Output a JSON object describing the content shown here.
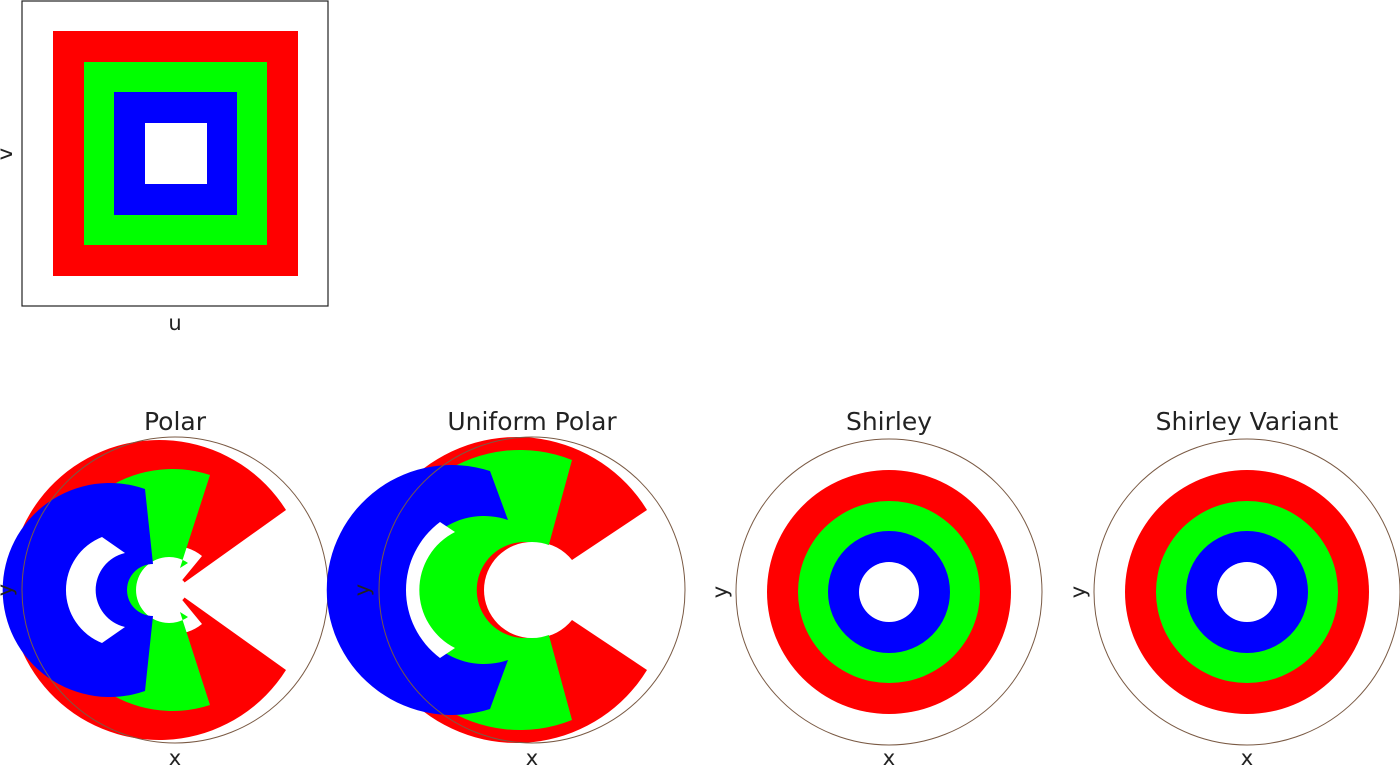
{
  "colors": {
    "ring_outer": "#ff0000",
    "ring_middle": "#00ff00",
    "ring_inner": "#0000ff",
    "center": "#ffffff",
    "unit_circle": "#7a5a44",
    "frame": "#222222"
  },
  "chart_data": [
    {
      "type": "image",
      "panel": "uv-square",
      "title": "",
      "xlabel": "u",
      "ylabel": "v",
      "xlim": [
        0,
        1
      ],
      "ylim": [
        0,
        1
      ],
      "bands": [
        {
          "color": "red",
          "from": 0.1,
          "to": 0.2
        },
        {
          "color": "green",
          "from": 0.2,
          "to": 0.3
        },
        {
          "color": "blue",
          "from": 0.3,
          "to": 0.4
        },
        {
          "color": "white",
          "from": 0.4,
          "to": 0.5
        }
      ]
    },
    {
      "type": "image",
      "panel": "polar",
      "title": "Polar",
      "xlabel": "x",
      "ylabel": "y",
      "xlim": [
        -1,
        1
      ],
      "ylim": [
        -1,
        1
      ]
    },
    {
      "type": "image",
      "panel": "uniform-polar",
      "title": "Uniform Polar",
      "xlabel": "x",
      "ylabel": "y",
      "xlim": [
        -1,
        1
      ],
      "ylim": [
        -1,
        1
      ]
    },
    {
      "type": "image",
      "panel": "shirley",
      "title": "Shirley",
      "xlabel": "x",
      "ylabel": "y",
      "xlim": [
        -1,
        1
      ],
      "ylim": [
        -1,
        1
      ],
      "ring_radii": {
        "red": [
          0.6,
          0.8
        ],
        "green": [
          0.4,
          0.6
        ],
        "blue": [
          0.2,
          0.4
        ]
      }
    },
    {
      "type": "image",
      "panel": "shirley-variant",
      "title": "Shirley Variant",
      "xlabel": "x",
      "ylabel": "y",
      "xlim": [
        -1,
        1
      ],
      "ylim": [
        -1,
        1
      ],
      "ring_radii": {
        "red": [
          0.6,
          0.8
        ],
        "green": [
          0.4,
          0.6
        ],
        "blue": [
          0.2,
          0.4
        ]
      }
    }
  ]
}
